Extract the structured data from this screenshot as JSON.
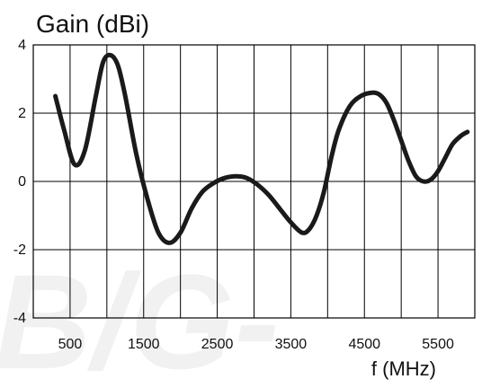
{
  "watermark_text": "B/G-",
  "chart_data": {
    "type": "line",
    "title": "Gain (dBi)",
    "xlabel": "f (MHz)",
    "ylabel": "",
    "xlim": [
      0,
      6000
    ],
    "ylim": [
      -4,
      4
    ],
    "grid": true,
    "x_ticks": [
      500,
      1500,
      2500,
      3500,
      4500,
      5500
    ],
    "x_tick_labels": [
      "500",
      "1500",
      "2500",
      "3500",
      "4500",
      "5500"
    ],
    "y_ticks": [
      4,
      2,
      0,
      -2,
      -4
    ],
    "y_tick_labels": [
      "4",
      "2",
      "0",
      "-2",
      "-4"
    ],
    "x_gridlines": [
      500,
      1000,
      1500,
      2000,
      2500,
      3000,
      3500,
      4000,
      4500,
      5000,
      5500
    ],
    "y_gridlines": [
      2,
      0,
      -2
    ],
    "colors": {
      "line": "#1a1a1a",
      "grid": "#000000",
      "watermark": "#f1f1f1"
    },
    "series": [
      {
        "x": [
          300,
          420,
          560,
          700,
          850,
          950,
          1050,
          1150,
          1250,
          1400,
          1550,
          1700,
          1850,
          2000,
          2150,
          2300,
          2450,
          2600,
          2750,
          2900,
          3050,
          3200,
          3350,
          3500,
          3650,
          3750,
          3850,
          3950,
          4050,
          4150,
          4300,
          4450,
          4600,
          4700,
          4800,
          4900,
          5000,
          5100,
          5200,
          5300,
          5400,
          5500,
          5600,
          5700,
          5820,
          5900
        ],
        "y": [
          2.5,
          1.5,
          0.5,
          0.9,
          2.5,
          3.5,
          3.7,
          3.4,
          2.5,
          0.8,
          -0.5,
          -1.5,
          -1.8,
          -1.5,
          -0.8,
          -0.3,
          -0.05,
          0.1,
          0.15,
          0.1,
          -0.1,
          -0.4,
          -0.8,
          -1.2,
          -1.5,
          -1.4,
          -1.0,
          -0.3,
          0.7,
          1.5,
          2.2,
          2.5,
          2.6,
          2.55,
          2.3,
          1.8,
          1.2,
          0.6,
          0.15,
          0.0,
          0.05,
          0.3,
          0.7,
          1.1,
          1.35,
          1.45
        ]
      }
    ]
  }
}
